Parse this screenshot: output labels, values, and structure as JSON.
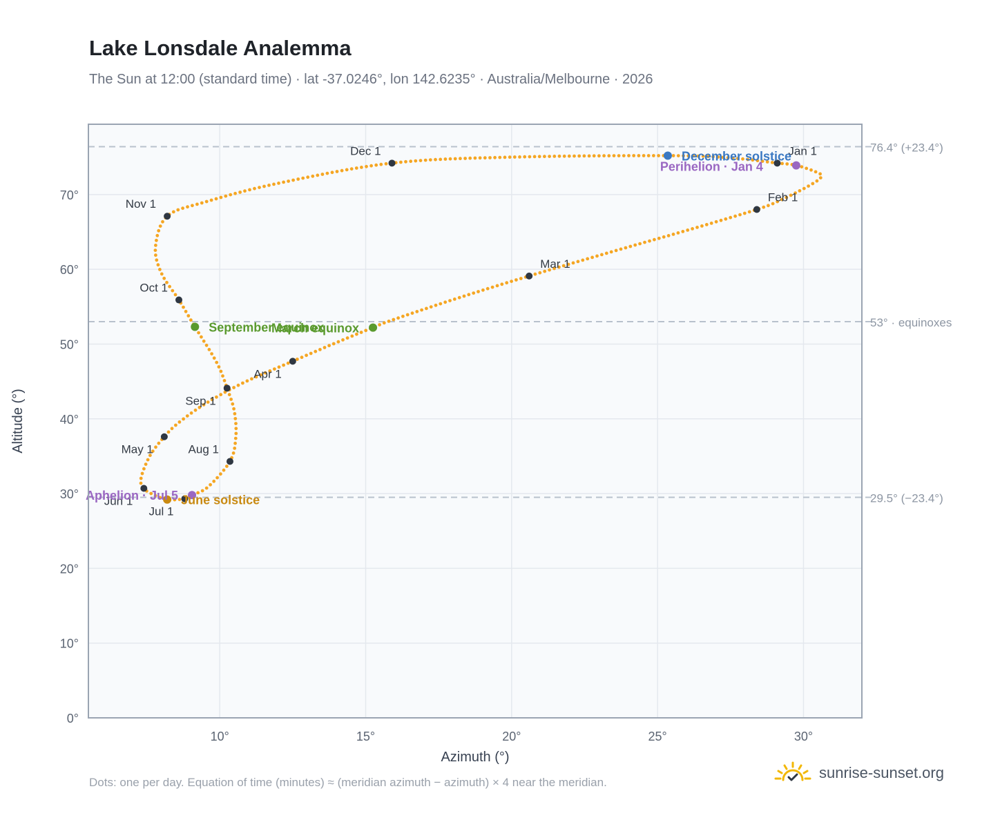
{
  "header": {
    "title": "Lake Lonsdale Analemma",
    "subtitle": "The Sun at 12:00 (standard time) · lat -37.0246°, lon 142.6235° · Australia/Melbourne · 2026"
  },
  "footer": {
    "note": "Dots: one per day. Equation of time (minutes) ≈ (meridian azimuth − azimuth) × 4 near the meridian.",
    "brand": "sunrise-sunset.org"
  },
  "colors": {
    "curve": "#f5a623",
    "month_marker": "#2f3742",
    "equinox": "#5a9a2e",
    "december_solstice": "#3a78c2",
    "june_solstice": "#c98a12",
    "apsis": "#9a67c2",
    "plot_bg": "#f8fafc",
    "grid": "#e4e8ee",
    "frame": "#9aa4b2",
    "ref_line": "#b8c1cc"
  },
  "chart_data": {
    "type": "scatter",
    "xlabel": "Azimuth (°)",
    "ylabel": "Altitude (°)",
    "xlim": [
      5.5,
      32
    ],
    "ylim": [
      0,
      79.4
    ],
    "xticks": [
      10,
      15,
      20,
      25,
      30
    ],
    "yticks": [
      0,
      10,
      20,
      30,
      40,
      50,
      60,
      70
    ],
    "x_tick_labels": [
      "10°",
      "15°",
      "20°",
      "25°",
      "30°"
    ],
    "y_tick_labels": [
      "0°",
      "10°",
      "20°",
      "30°",
      "40°",
      "50°",
      "60°",
      "70°"
    ],
    "grid": true,
    "reference_lines": [
      {
        "y": 76.4,
        "label": "76.4° (+23.4°)"
      },
      {
        "y": 53,
        "label": "53° · equinoxes"
      },
      {
        "y": 29.5,
        "label": "29.5° (−23.4°)"
      }
    ],
    "month_markers": [
      {
        "label": "Jan 1",
        "x": 29.1,
        "y": 74.2,
        "label_pos": "above-right"
      },
      {
        "label": "Feb 1",
        "x": 28.4,
        "y": 68.0,
        "label_pos": "above-right"
      },
      {
        "label": "Mar 1",
        "x": 20.6,
        "y": 59.1,
        "label_pos": "above-right"
      },
      {
        "label": "Apr 1",
        "x": 12.5,
        "y": 47.7,
        "label_pos": "below-left"
      },
      {
        "label": "May 1",
        "x": 8.1,
        "y": 37.6,
        "label_pos": "below-left"
      },
      {
        "label": "Jun 1",
        "x": 7.4,
        "y": 30.7,
        "label_pos": "below-left"
      },
      {
        "label": "Jul 1",
        "x": 8.8,
        "y": 29.3,
        "label_pos": "below-left"
      },
      {
        "label": "Aug 1",
        "x": 10.35,
        "y": 34.3,
        "label_pos": "above-left"
      },
      {
        "label": "Sep 1",
        "x": 10.25,
        "y": 44.1,
        "label_pos": "below-left"
      },
      {
        "label": "Oct 1",
        "x": 8.6,
        "y": 55.9,
        "label_pos": "above-left"
      },
      {
        "label": "Nov 1",
        "x": 8.2,
        "y": 67.1,
        "label_pos": "above-left"
      },
      {
        "label": "Dec 1",
        "x": 15.9,
        "y": 74.2,
        "label_pos": "above-left"
      }
    ],
    "events": [
      {
        "label": "December solstice",
        "x": 25.35,
        "y": 75.2,
        "kind": "december_solstice",
        "label_pos": "right"
      },
      {
        "label": "Perihelion · Jan 4",
        "x": 29.75,
        "y": 73.9,
        "kind": "apsis",
        "label_pos": "left-below"
      },
      {
        "label": "March equinox",
        "x": 15.25,
        "y": 52.2,
        "kind": "equinox",
        "label_pos": "left"
      },
      {
        "label": "September equinox",
        "x": 9.15,
        "y": 52.3,
        "kind": "equinox",
        "label_pos": "right"
      },
      {
        "label": "June solstice",
        "x": 8.2,
        "y": 29.2,
        "kind": "june_solstice",
        "label_pos": "right"
      },
      {
        "label": "Aphelion · Jul 5",
        "x": 9.05,
        "y": 29.8,
        "kind": "apsis",
        "label_pos": "left"
      }
    ],
    "curve_anchor_points": [
      [
        29.1,
        74.2
      ],
      [
        29.75,
        73.9
      ],
      [
        30.5,
        72.9
      ],
      [
        30.6,
        72.3
      ],
      [
        30.2,
        71.2
      ],
      [
        29.3,
        69.4
      ],
      [
        28.4,
        68.0
      ],
      [
        26.0,
        65.2
      ],
      [
        23.3,
        62.2
      ],
      [
        20.6,
        59.1
      ],
      [
        18.2,
        56.2
      ],
      [
        15.9,
        53.2
      ],
      [
        15.25,
        52.2
      ],
      [
        14.0,
        50.2
      ],
      [
        12.5,
        47.7
      ],
      [
        10.8,
        44.8
      ],
      [
        9.5,
        42.0
      ],
      [
        8.6,
        39.5
      ],
      [
        8.1,
        37.6
      ],
      [
        7.6,
        35.0
      ],
      [
        7.3,
        32.0
      ],
      [
        7.4,
        30.7
      ],
      [
        7.7,
        29.9
      ],
      [
        8.2,
        29.2
      ],
      [
        8.8,
        29.3
      ],
      [
        9.05,
        29.8
      ],
      [
        9.6,
        30.9
      ],
      [
        10.35,
        34.3
      ],
      [
        10.55,
        37.5
      ],
      [
        10.5,
        41.0
      ],
      [
        10.25,
        44.1
      ],
      [
        9.9,
        47.5
      ],
      [
        9.15,
        52.3
      ],
      [
        8.6,
        55.9
      ],
      [
        8.0,
        59.5
      ],
      [
        7.8,
        63.0
      ],
      [
        8.2,
        67.1
      ],
      [
        9.5,
        69.0
      ],
      [
        12.0,
        71.5
      ],
      [
        15.9,
        74.2
      ],
      [
        20.0,
        75.0
      ],
      [
        25.35,
        75.2
      ],
      [
        27.5,
        74.9
      ],
      [
        29.1,
        74.2
      ]
    ],
    "days": 365
  }
}
